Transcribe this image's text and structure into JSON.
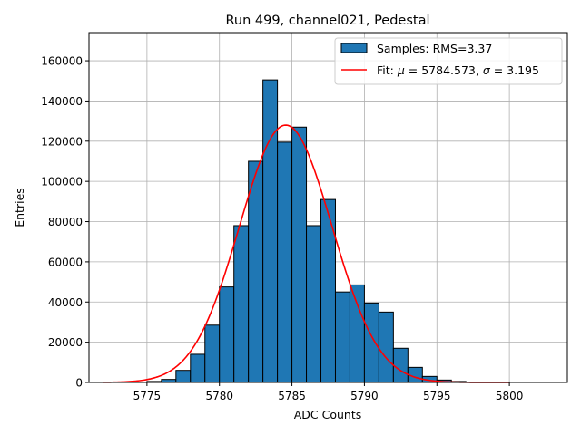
{
  "chart_data": {
    "type": "bar",
    "title": "Run 499, channel021, Pedestal",
    "xlabel": "ADC Counts",
    "ylabel": "Entries",
    "xlim": [
      5771,
      5804
    ],
    "ylim": [
      0,
      174000
    ],
    "x_ticks": [
      5775,
      5780,
      5785,
      5790,
      5795,
      5800
    ],
    "y_ticks": [
      0,
      20000,
      40000,
      60000,
      80000,
      100000,
      120000,
      140000,
      160000
    ],
    "grid": true,
    "legend_position": "top-right",
    "histogram": {
      "name": "Samples: RMS=3.37",
      "color": "#1f77b4",
      "bin_width": 1,
      "bin_left_edges": [
        5775,
        5776,
        5777,
        5778,
        5779,
        5780,
        5781,
        5782,
        5783,
        5784,
        5785,
        5786,
        5787,
        5788,
        5789,
        5790,
        5791,
        5792,
        5793,
        5794,
        5795,
        5796
      ],
      "counts": [
        500,
        1500,
        6000,
        14000,
        28500,
        47500,
        78000,
        110000,
        150500,
        119500,
        127000,
        78000,
        91000,
        45000,
        48500,
        39500,
        35000,
        17000,
        7500,
        3000,
        1200,
        500
      ]
    },
    "fit": {
      "name": "Fit: μ = 5784.573, σ = 3.195",
      "name_prefix": "Fit: ",
      "mu_symbol": "μ",
      "mu_text": " = 5784.573, ",
      "sigma_symbol": "σ",
      "sigma_text": " = 3.195",
      "color": "#ff0000",
      "mu": 5784.573,
      "sigma": 3.195,
      "amplitude": 128000,
      "x_range": [
        5772,
        5800
      ]
    }
  }
}
